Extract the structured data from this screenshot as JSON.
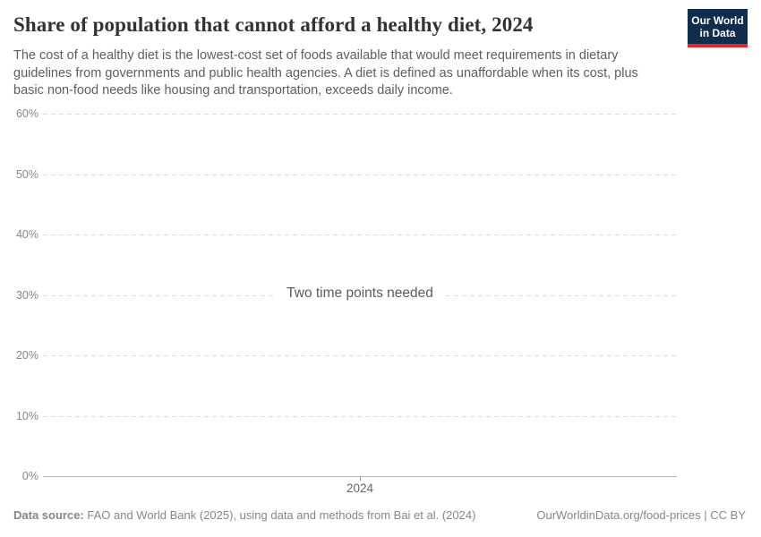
{
  "header": {
    "title": "Share of population that cannot afford a healthy diet, 2024",
    "subtitle": "The cost of a healthy diet is the lowest-cost set of foods available that would meet requirements in dietary guidelines from governments and public health agencies. A diet is defined as unaffordable when its cost, plus basic non-food needs like housing and transportation, exceeds daily income."
  },
  "logo": {
    "line1": "Our World",
    "line2": "in Data",
    "bg_color": "#102d4e",
    "bar_color": "#e2262c"
  },
  "chart_data": {
    "type": "line",
    "title": "Share of population that cannot afford a healthy diet, 2024",
    "series": [],
    "message": "Two time points needed",
    "x_ticks": [
      "2024"
    ],
    "y_ticks": [
      0,
      10,
      20,
      30,
      40,
      50,
      60
    ],
    "y_tick_labels": [
      "0%",
      "10%",
      "20%",
      "30%",
      "40%",
      "50%",
      "60%"
    ],
    "ylim": [
      0,
      60
    ],
    "grid": "horizontal-dashed",
    "legend": "none"
  },
  "footer": {
    "datasource_label": "Data source:",
    "datasource_text": "FAO and World Bank (2025), using data and methods from Bai et al. (2024)",
    "credit": "OurWorldinData.org/food-prices | CC BY"
  }
}
